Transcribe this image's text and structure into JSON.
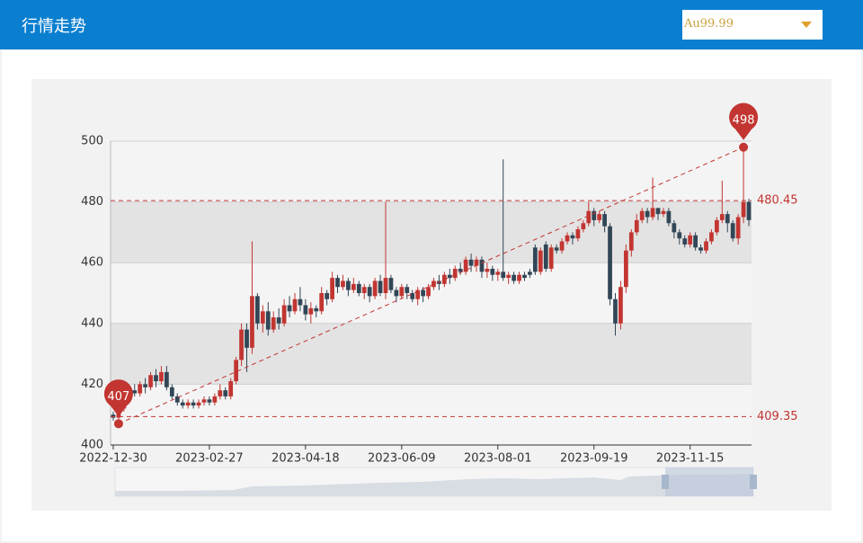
{
  "header": {
    "title": "行情走势",
    "select": {
      "value": "Au99.99"
    }
  },
  "chart_data": {
    "type": "candlestick",
    "categories": [
      "2022-12-30",
      null,
      null,
      null,
      null,
      null,
      null,
      null,
      null,
      null,
      null,
      null,
      null,
      null,
      null,
      null,
      null,
      null,
      "2023-02-27",
      null,
      null,
      null,
      null,
      null,
      null,
      null,
      null,
      null,
      null,
      null,
      null,
      null,
      null,
      null,
      null,
      null,
      "2023-04-18",
      null,
      null,
      null,
      null,
      null,
      null,
      null,
      null,
      null,
      null,
      null,
      null,
      null,
      null,
      null,
      null,
      null,
      "2023-06-09",
      null,
      null,
      null,
      null,
      null,
      null,
      null,
      null,
      null,
      null,
      null,
      null,
      null,
      null,
      null,
      null,
      null,
      "2023-08-01",
      null,
      null,
      null,
      null,
      null,
      null,
      null,
      null,
      null,
      null,
      null,
      null,
      null,
      null,
      null,
      null,
      null,
      "2023-09-19",
      null,
      null,
      null,
      null,
      null,
      null,
      null,
      null,
      null,
      null,
      null,
      null,
      null,
      null,
      null,
      null,
      null,
      "2023-11-15",
      null,
      null,
      null,
      null,
      null,
      null,
      null,
      null,
      null,
      null,
      null
    ],
    "open": [
      410,
      409,
      412,
      415,
      418,
      417,
      420,
      419,
      423,
      421,
      424,
      419,
      416,
      414,
      413,
      414,
      413,
      414,
      415,
      414,
      416,
      418,
      416,
      421,
      428,
      438,
      432,
      449,
      440,
      444,
      438,
      442,
      440,
      446,
      444,
      448,
      446,
      443,
      445,
      444,
      450,
      448,
      455,
      452,
      454,
      451,
      453,
      450,
      452,
      449,
      454,
      450,
      455,
      451,
      449,
      452,
      450,
      448,
      451,
      449,
      452,
      454,
      453,
      456,
      455,
      458,
      457,
      461,
      459,
      461,
      457,
      458,
      456,
      457,
      455,
      456,
      454,
      456,
      457,
      465,
      457,
      466,
      458,
      465,
      464,
      467,
      469,
      468,
      471,
      473,
      477,
      474,
      476,
      472,
      448,
      440,
      452,
      464,
      470,
      474,
      477,
      475,
      478,
      476,
      477,
      473,
      470,
      468,
      466,
      469,
      465,
      464,
      467,
      470,
      474,
      476,
      473,
      468,
      475,
      480
    ],
    "close": [
      409,
      412,
      415,
      418,
      417,
      420,
      419,
      423,
      421,
      424,
      419,
      416,
      414,
      413,
      414,
      413,
      414,
      415,
      414,
      416,
      418,
      416,
      421,
      428,
      438,
      432,
      449,
      440,
      444,
      438,
      442,
      440,
      446,
      444,
      448,
      446,
      443,
      445,
      444,
      450,
      448,
      455,
      452,
      454,
      451,
      453,
      450,
      452,
      449,
      454,
      450,
      455,
      451,
      449,
      452,
      450,
      448,
      451,
      449,
      452,
      454,
      453,
      456,
      455,
      458,
      457,
      461,
      459,
      461,
      457,
      458,
      456,
      457,
      455,
      456,
      454,
      456,
      455,
      456,
      457,
      464,
      458,
      465,
      464,
      467,
      469,
      468,
      471,
      473,
      477,
      474,
      476,
      472,
      448,
      440,
      452,
      464,
      470,
      474,
      477,
      475,
      478,
      476,
      477,
      473,
      470,
      468,
      466,
      469,
      465,
      464,
      467,
      470,
      474,
      476,
      473,
      468,
      475,
      480,
      474
    ],
    "low": [
      408,
      407,
      411,
      414,
      416,
      416,
      417,
      418,
      419,
      420,
      418,
      415,
      413,
      412,
      412,
      412,
      412,
      413,
      413,
      413,
      415,
      415,
      415,
      420,
      426,
      424,
      430,
      438,
      437,
      436,
      437,
      438,
      439,
      442,
      443,
      444,
      441,
      440,
      442,
      443,
      446,
      447,
      450,
      451,
      449,
      450,
      449,
      448,
      447,
      448,
      449,
      448,
      450,
      447,
      448,
      448,
      447,
      446,
      447,
      448,
      451,
      451,
      452,
      453,
      454,
      456,
      456,
      457,
      457,
      455,
      455,
      454,
      454,
      454,
      453,
      453,
      453,
      454,
      455,
      456,
      456,
      457,
      457,
      463,
      463,
      466,
      466,
      467,
      470,
      472,
      472,
      473,
      470,
      446,
      436,
      438,
      450,
      462,
      469,
      473,
      473,
      474,
      474,
      475,
      472,
      468,
      466,
      465,
      465,
      464,
      463,
      463,
      466,
      469,
      473,
      470,
      467,
      466,
      473,
      472
    ],
    "high": [
      411,
      413,
      416,
      419,
      420,
      421,
      422,
      424,
      425,
      426,
      426,
      420,
      417,
      415,
      415,
      415,
      415,
      416,
      416,
      417,
      420,
      419,
      422,
      429,
      440,
      440,
      467,
      450,
      446,
      447,
      444,
      445,
      448,
      449,
      450,
      452,
      448,
      447,
      446,
      452,
      451,
      457,
      456,
      456,
      455,
      455,
      454,
      453,
      453,
      455,
      456,
      480,
      456,
      452,
      453,
      453,
      451,
      452,
      452,
      453,
      455,
      456,
      457,
      458,
      459,
      460,
      462,
      463,
      462,
      462,
      460,
      459,
      458,
      494,
      457,
      457,
      457,
      457,
      458,
      466,
      465,
      467,
      466,
      466,
      468,
      470,
      470,
      472,
      474,
      480,
      478,
      477,
      477,
      473,
      450,
      454,
      466,
      471,
      476,
      478,
      478,
      488,
      478,
      478,
      478,
      474,
      471,
      469,
      470,
      470,
      466,
      468,
      471,
      475,
      487,
      477,
      474,
      476,
      498,
      481
    ],
    "up_color": "#c23531",
    "down_color": "#314656",
    "ylim": [
      400,
      500
    ],
    "yticks": [
      400,
      420,
      440,
      460,
      480,
      500
    ],
    "grid": true,
    "split_area": true,
    "mark_points": [
      407,
      498
    ],
    "mark_lines": [
      480.45,
      409.35
    ],
    "mark_color": "#c23531"
  }
}
